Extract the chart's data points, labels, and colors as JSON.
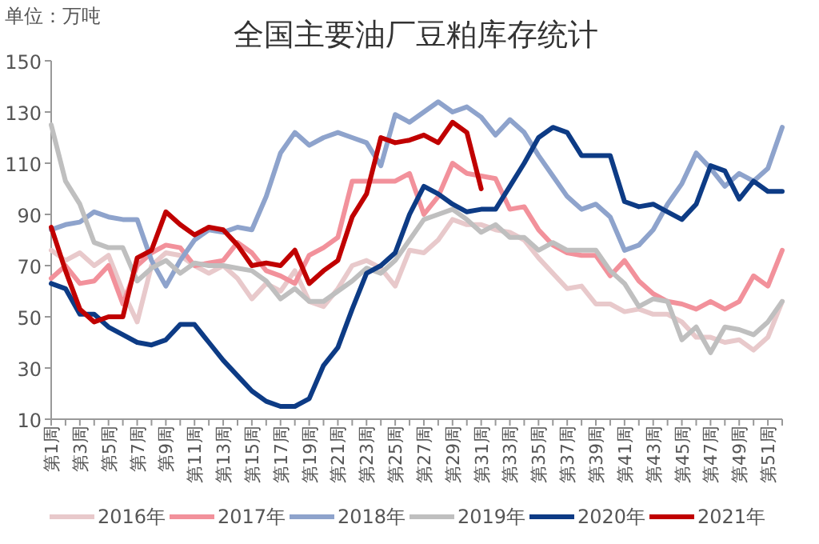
{
  "chart_data": {
    "type": "line",
    "title": "全国主要油厂豆粕库存统计",
    "annotations": [
      "单位：万吨"
    ],
    "categories": [
      "第1周",
      null,
      "第3周",
      null,
      "第5周",
      null,
      "第7周",
      null,
      "第9周",
      null,
      "第11周",
      null,
      "第13周",
      null,
      "第15周",
      null,
      "第17周",
      null,
      "第19周",
      null,
      "第21周",
      null,
      "第23周",
      null,
      "第25周",
      null,
      "第27周",
      null,
      "第29周",
      null,
      "第31周",
      null,
      "第33周",
      null,
      "第35周",
      null,
      "第37周",
      null,
      "第39周",
      null,
      "第41周",
      null,
      "第43周",
      null,
      "第45周",
      null,
      "第47周",
      null,
      "第49周",
      null,
      "第51周",
      null
    ],
    "ylim": [
      10,
      150
    ],
    "yticks": [
      10,
      30,
      50,
      70,
      90,
      110,
      130,
      150
    ],
    "grid": false,
    "legend": "bottom",
    "marker": "none",
    "line_style": "solid",
    "series": [
      {
        "name": "2016年",
        "color": "#e8c9cb",
        "values": [
          76,
          72,
          75,
          70,
          74,
          60,
          48,
          70,
          75,
          74,
          70,
          67,
          70,
          65,
          57,
          63,
          60,
          68,
          56,
          54,
          61,
          70,
          72,
          69,
          62,
          76,
          75,
          80,
          88,
          86,
          86,
          84,
          83,
          80,
          73,
          67,
          61,
          62,
          55,
          55,
          52,
          53,
          51,
          51,
          48,
          42,
          42,
          40,
          41,
          37,
          42,
          56
        ]
      },
      {
        "name": "2017年",
        "color": "#f2919b",
        "values": [
          65,
          70,
          63,
          64,
          70,
          55,
          70,
          75,
          78,
          77,
          70,
          71,
          72,
          79,
          75,
          68,
          66,
          63,
          74,
          77,
          81,
          103,
          103,
          103,
          103,
          106,
          90,
          97,
          110,
          106,
          105,
          104,
          92,
          93,
          84,
          78,
          75,
          74,
          74,
          66,
          72,
          64,
          59,
          56,
          55,
          53,
          56,
          53,
          56,
          66,
          62,
          76
        ]
      },
      {
        "name": "2018年",
        "color": "#8ea3cc",
        "values": [
          84,
          86,
          87,
          91,
          89,
          88,
          88,
          72,
          62,
          72,
          80,
          84,
          83,
          85,
          84,
          97,
          114,
          122,
          117,
          120,
          122,
          120,
          118,
          109,
          129,
          126,
          130,
          134,
          130,
          132,
          128,
          121,
          127,
          122,
          113,
          105,
          97,
          92,
          94,
          89,
          76,
          78,
          84,
          94,
          102,
          114,
          108,
          101,
          106,
          103,
          108,
          124
        ]
      },
      {
        "name": "2019年",
        "color": "#bfbfbf",
        "values": [
          125,
          103,
          94,
          79,
          77,
          77,
          64,
          69,
          72,
          67,
          71,
          70,
          70,
          69,
          68,
          64,
          57,
          61,
          56,
          56,
          60,
          64,
          69,
          67,
          72,
          80,
          88,
          90,
          92,
          88,
          83,
          86,
          81,
          81,
          76,
          79,
          76,
          76,
          76,
          68,
          63,
          54,
          57,
          56,
          41,
          46,
          36,
          46,
          45,
          43,
          48,
          56
        ]
      },
      {
        "name": "2020年",
        "color": "#0d3b85",
        "values": [
          63,
          61,
          51,
          51,
          46,
          43,
          40,
          39,
          41,
          47,
          47,
          40,
          33,
          27,
          21,
          17,
          15,
          15,
          18,
          31,
          38,
          53,
          67,
          70,
          75,
          90,
          101,
          98,
          94,
          91,
          92,
          92,
          101,
          110,
          120,
          124,
          122,
          113,
          113,
          113,
          95,
          93,
          94,
          91,
          88,
          94,
          109,
          107,
          96,
          103,
          99,
          99
        ]
      },
      {
        "name": "2021年",
        "color": "#c00000",
        "values": [
          85,
          68,
          53,
          48,
          50,
          50,
          73,
          76,
          91,
          86,
          82,
          85,
          84,
          78,
          70,
          71,
          70,
          76,
          63,
          68,
          72,
          89,
          98,
          120,
          118,
          119,
          121,
          118,
          126,
          122,
          100,
          null,
          null,
          null,
          null,
          null,
          null,
          null,
          null,
          null,
          null,
          null,
          null,
          null,
          null,
          null,
          null,
          null,
          null,
          null,
          null,
          null
        ]
      }
    ]
  }
}
